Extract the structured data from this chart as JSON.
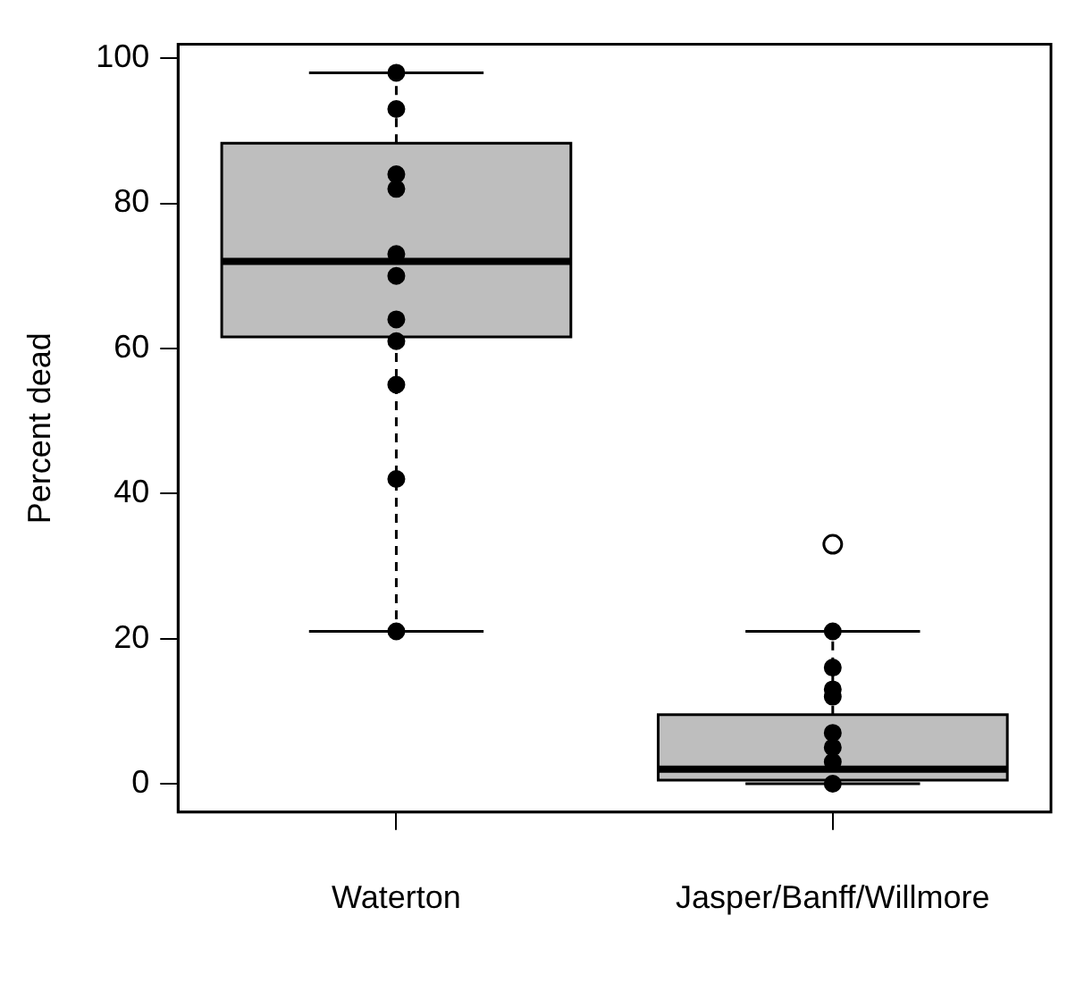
{
  "chart_data": {
    "type": "box",
    "ylabel": "Percent dead",
    "categories": [
      "Waterton",
      "Jasper/Banff/Willmore"
    ],
    "ylim": [
      -3.92,
      101.92
    ],
    "yticks": [
      0,
      20,
      40,
      60,
      80,
      100
    ],
    "marker": "circle",
    "series": [
      {
        "type": "box",
        "color": "#bebebe",
        "boxes": [
          {
            "low": 21,
            "q1": 61.6,
            "median": 72,
            "q3": 88.3,
            "high": 98
          },
          {
            "low": 0,
            "q1": 0.5,
            "median": 2,
            "q3": 9.5,
            "high": 21,
            "outliers": [
              33
            ]
          }
        ]
      },
      {
        "type": "scatter",
        "color": "#000000",
        "x": [
          "Waterton",
          "Waterton",
          "Waterton",
          "Waterton",
          "Waterton",
          "Waterton",
          "Waterton",
          "Waterton",
          "Waterton",
          "Waterton",
          "Waterton",
          "Jasper/Banff/Willmore",
          "Jasper/Banff/Willmore",
          "Jasper/Banff/Willmore",
          "Jasper/Banff/Willmore",
          "Jasper/Banff/Willmore",
          "Jasper/Banff/Willmore",
          "Jasper/Banff/Willmore",
          "Jasper/Banff/Willmore"
        ],
        "values": [
          98,
          93,
          84,
          82,
          73,
          70,
          64,
          61,
          55,
          42,
          21,
          21,
          16,
          13,
          12,
          7,
          5,
          3,
          0
        ]
      }
    ]
  }
}
